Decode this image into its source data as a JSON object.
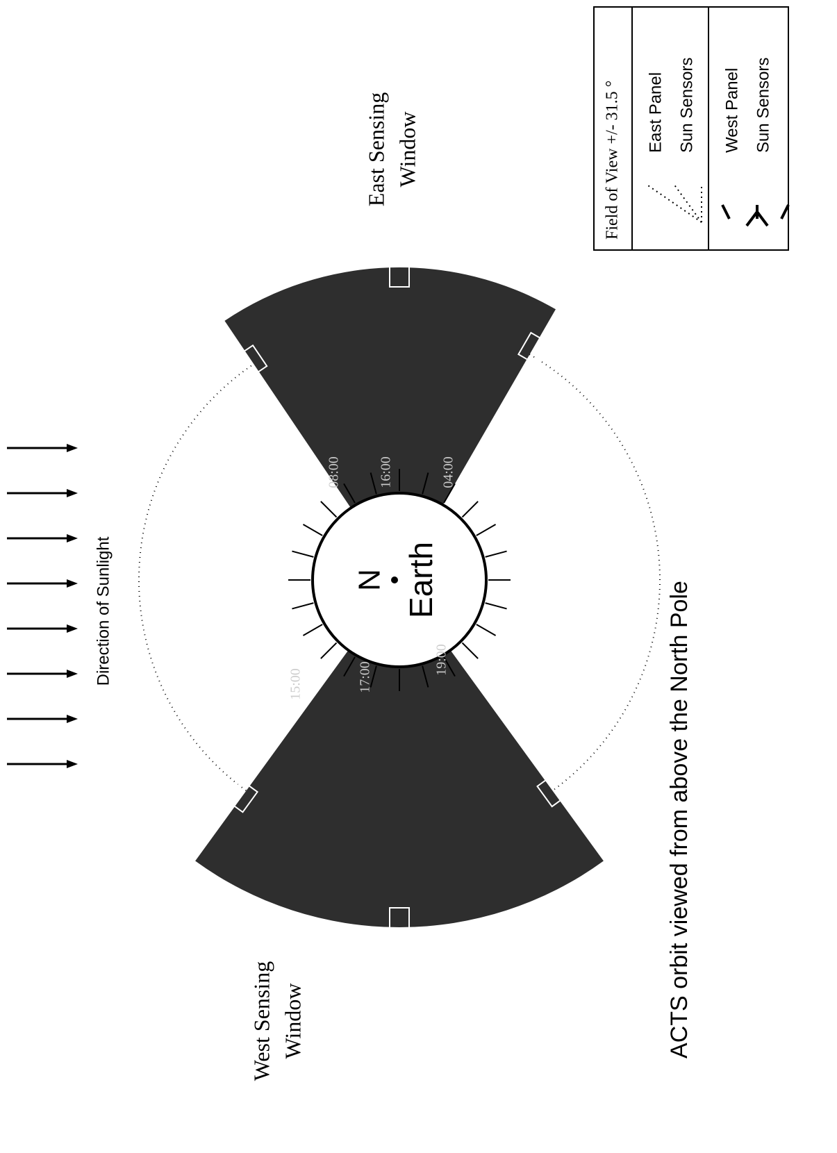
{
  "title": "ACTS orbit viewed from above the North Pole",
  "sunlight_label": "Direction of Sunlight",
  "east_window": {
    "lines": [
      "East Sensing",
      "Window"
    ]
  },
  "west_window": {
    "lines": [
      "West Sensing",
      "Window"
    ]
  },
  "earth": {
    "pole": "N",
    "label": "Earth"
  },
  "time_labels": [
    "08:00",
    "16:00",
    "04:00",
    "15:00",
    "17:00",
    "19:00"
  ],
  "legend": {
    "header": "Field of View  +/- 31.5 °",
    "east": [
      "East Panel",
      "Sun Sensors"
    ],
    "west": [
      "West Panel",
      "Sun Sensors"
    ]
  }
}
